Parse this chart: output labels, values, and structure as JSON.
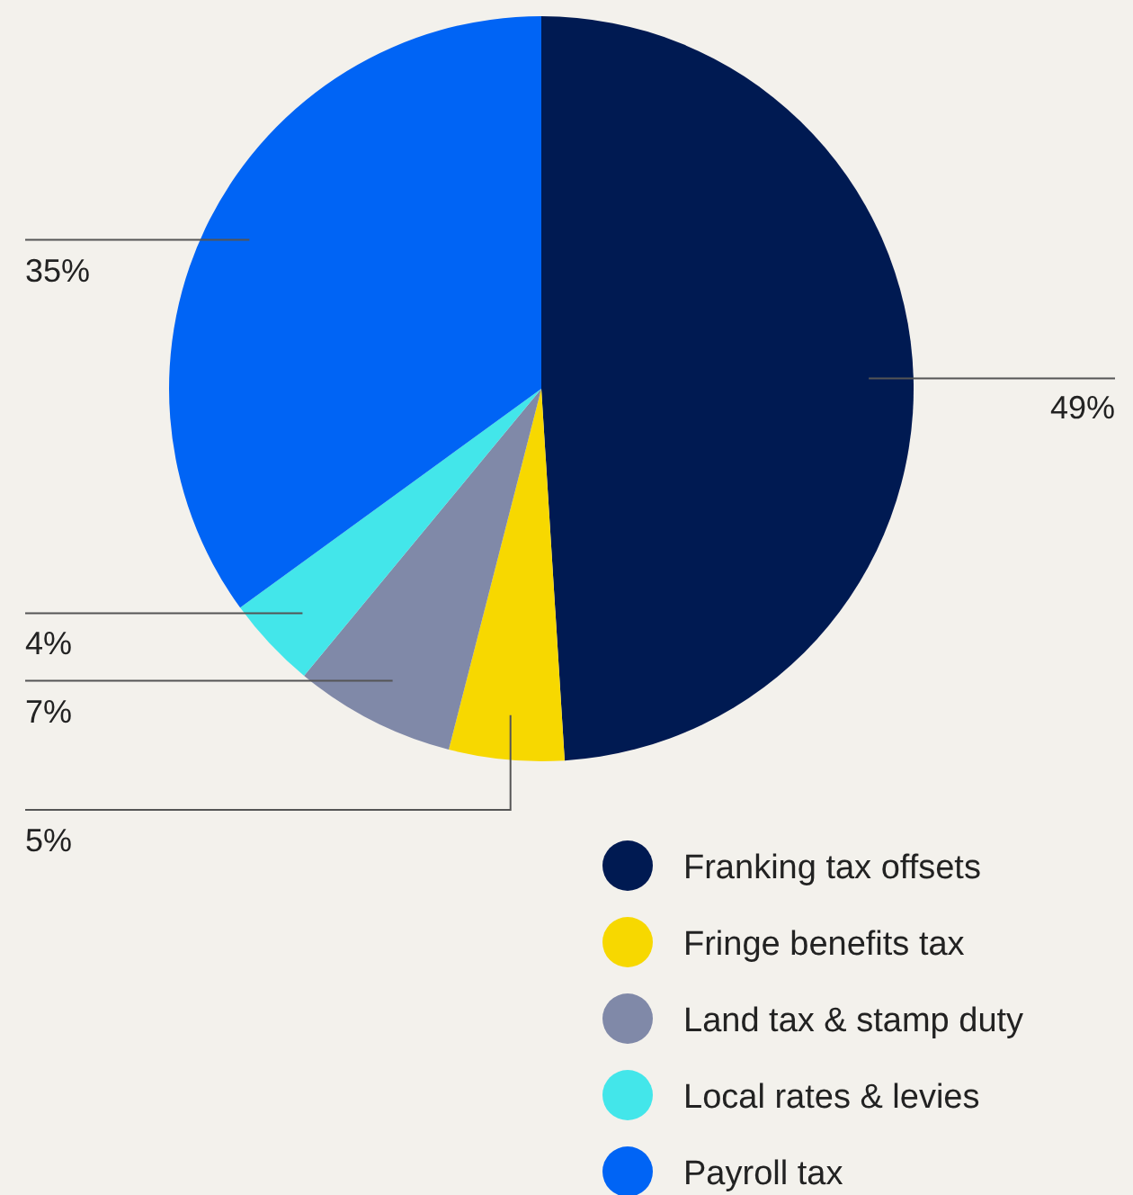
{
  "chart_data": {
    "type": "pie",
    "categories": [
      "Franking tax offsets",
      "Fringe benefits tax",
      "Land tax & stamp duty",
      "Local rates & levies",
      "Payroll tax"
    ],
    "values": [
      49,
      5,
      7,
      4,
      35
    ],
    "colors": [
      "#001a52",
      "#f7d800",
      "#8089a8",
      "#43e6ea",
      "#0064f5"
    ],
    "value_labels": [
      "49%",
      "5%",
      "7%",
      "4%",
      "35%"
    ],
    "legend": "bottom right"
  }
}
